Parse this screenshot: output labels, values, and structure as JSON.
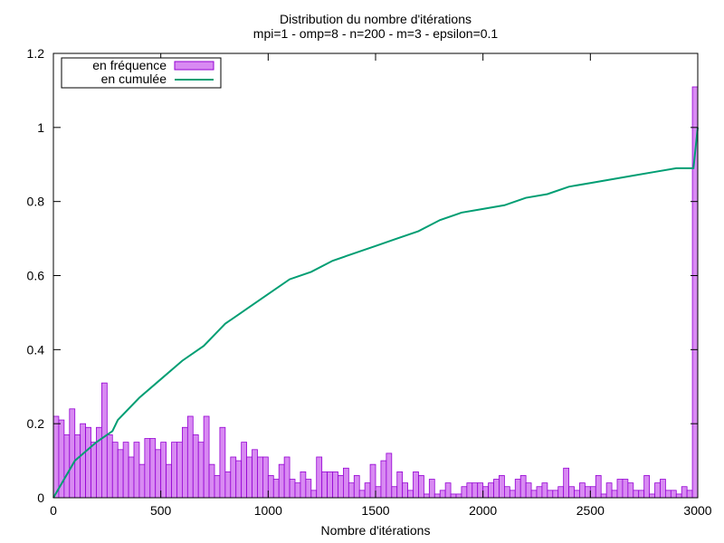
{
  "chart_data": {
    "type": "bar",
    "title": "Distribution du nombre d'itérations",
    "subtitle": "mpi=1 - omp=8 - n=200 - m=3 - epsilon=0.1",
    "xlabel": "Nombre d'itérations",
    "ylabel": "",
    "xlim": [
      0,
      3000
    ],
    "ylim": [
      0,
      1.2
    ],
    "x_ticks": [
      0,
      500,
      1000,
      1500,
      2000,
      2500,
      3000
    ],
    "y_ticks": [
      0,
      0.2,
      0.4,
      0.6,
      0.8,
      1,
      1.2
    ],
    "grid": false,
    "legend_position": "top-left",
    "bin_width": 25,
    "colors": {
      "frequency": "#D88AF2",
      "frequency_edge": "#9400D3",
      "cumulative": "#009E73"
    },
    "series": [
      {
        "name": "en fréquence",
        "style": "bar",
        "x": [
          0,
          25,
          50,
          75,
          100,
          125,
          150,
          175,
          200,
          225,
          250,
          275,
          300,
          325,
          350,
          375,
          400,
          425,
          450,
          475,
          500,
          525,
          550,
          575,
          600,
          625,
          650,
          675,
          700,
          725,
          750,
          775,
          800,
          825,
          850,
          875,
          900,
          925,
          950,
          975,
          1000,
          1025,
          1050,
          1075,
          1100,
          1125,
          1150,
          1175,
          1200,
          1225,
          1250,
          1275,
          1300,
          1325,
          1350,
          1375,
          1400,
          1425,
          1450,
          1475,
          1500,
          1525,
          1550,
          1575,
          1600,
          1625,
          1650,
          1675,
          1700,
          1725,
          1750,
          1775,
          1800,
          1825,
          1850,
          1875,
          1900,
          1925,
          1950,
          1975,
          2000,
          2025,
          2050,
          2075,
          2100,
          2125,
          2150,
          2175,
          2200,
          2225,
          2250,
          2275,
          2300,
          2325,
          2350,
          2375,
          2400,
          2425,
          2450,
          2475,
          2500,
          2525,
          2550,
          2575,
          2600,
          2625,
          2650,
          2675,
          2700,
          2725,
          2750,
          2775,
          2800,
          2825,
          2850,
          2875,
          2900,
          2925,
          2950,
          2975
        ],
        "values": [
          0.22,
          0.21,
          0.17,
          0.24,
          0.17,
          0.2,
          0.19,
          0.15,
          0.19,
          0.31,
          0.17,
          0.15,
          0.13,
          0.15,
          0.11,
          0.15,
          0.09,
          0.16,
          0.16,
          0.13,
          0.15,
          0.09,
          0.15,
          0.15,
          0.19,
          0.22,
          0.17,
          0.15,
          0.22,
          0.09,
          0.06,
          0.19,
          0.07,
          0.11,
          0.1,
          0.15,
          0.11,
          0.13,
          0.11,
          0.11,
          0.06,
          0.05,
          0.09,
          0.11,
          0.05,
          0.04,
          0.07,
          0.05,
          0.02,
          0.11,
          0.07,
          0.07,
          0.07,
          0.06,
          0.08,
          0.04,
          0.06,
          0.02,
          0.04,
          0.09,
          0.03,
          0.1,
          0.12,
          0.03,
          0.07,
          0.04,
          0.02,
          0.07,
          0.06,
          0.01,
          0.05,
          0.01,
          0.02,
          0.04,
          0.01,
          0.01,
          0.03,
          0.04,
          0.04,
          0.04,
          0.03,
          0.04,
          0.05,
          0.06,
          0.03,
          0.02,
          0.05,
          0.06,
          0.04,
          0.02,
          0.03,
          0.04,
          0.02,
          0.02,
          0.03,
          0.08,
          0.03,
          0.02,
          0.04,
          0.03,
          0.03,
          0.06,
          0.01,
          0.04,
          0.02,
          0.05,
          0.05,
          0.04,
          0.02,
          0.02,
          0.06,
          0.01,
          0.04,
          0.05,
          0.02,
          0.02,
          0.01,
          0.03,
          0.02,
          1.11
        ]
      },
      {
        "name": "en cumulée",
        "style": "line",
        "x": [
          0,
          100,
          200,
          275,
          300,
          400,
          500,
          600,
          700,
          750,
          800,
          875,
          900,
          1000,
          1100,
          1200,
          1300,
          1400,
          1500,
          1600,
          1700,
          1800,
          1900,
          2000,
          2100,
          2200,
          2300,
          2400,
          2500,
          2600,
          2700,
          2800,
          2900,
          2950,
          2980,
          3000
        ],
        "values": [
          0,
          0.1,
          0.15,
          0.18,
          0.21,
          0.27,
          0.32,
          0.37,
          0.41,
          0.44,
          0.47,
          0.5,
          0.51,
          0.55,
          0.59,
          0.61,
          0.64,
          0.66,
          0.68,
          0.7,
          0.72,
          0.75,
          0.77,
          0.78,
          0.79,
          0.81,
          0.82,
          0.84,
          0.85,
          0.86,
          0.87,
          0.88,
          0.89,
          0.89,
          0.89,
          1.0
        ]
      }
    ]
  }
}
